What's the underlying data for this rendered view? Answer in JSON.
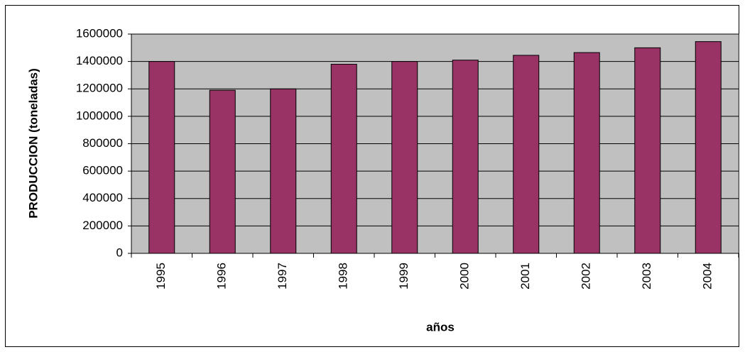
{
  "chart_data": {
    "type": "bar",
    "categories": [
      "1995",
      "1996",
      "1997",
      "1998",
      "1999",
      "2000",
      "2001",
      "2002",
      "2003",
      "2004"
    ],
    "values": [
      1400000,
      1190000,
      1200000,
      1380000,
      1400000,
      1410000,
      1445000,
      1465000,
      1500000,
      1545000
    ],
    "color": "#993366",
    "x_label": "años",
    "y_label": "PRODUCCION (toneladas)",
    "ylim": [
      0,
      1600000
    ],
    "yticks": [
      0,
      200000,
      400000,
      600000,
      800000,
      1000000,
      1200000,
      1400000,
      1600000
    ],
    "grid": true
  }
}
